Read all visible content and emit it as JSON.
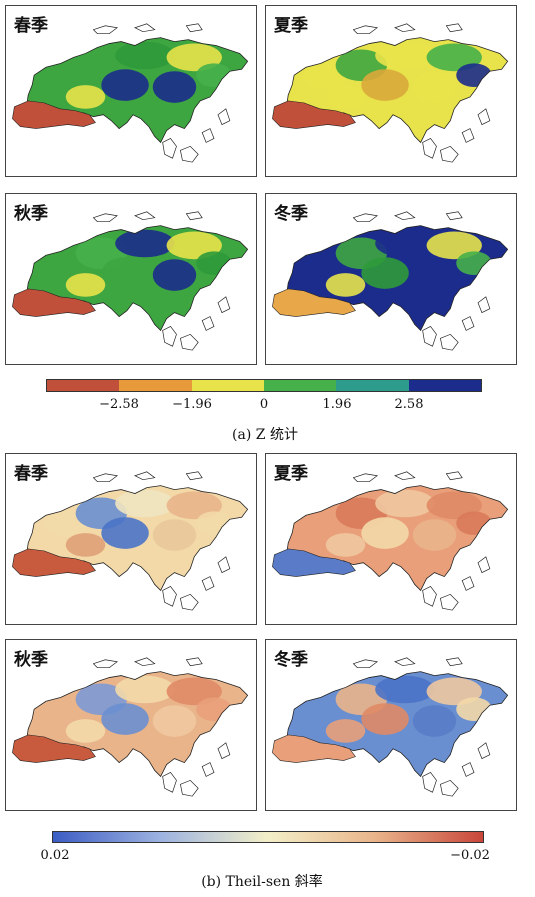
{
  "panel_a": {
    "panels": [
      {
        "label": "春季",
        "palette": [
          "#3ea641",
          "#3ea641",
          "#2f9a3a",
          "#e8e34a",
          "#1c2c8c",
          "#1c2c8c",
          "#46b04a",
          "#e8e34a"
        ],
        "south": "#c0503a"
      },
      {
        "label": "夏季",
        "palette": [
          "#e8e34a",
          "#3ea641",
          "#e8e34a",
          "#46b04a",
          "#d9a93a",
          "#e8e34a",
          "#1c2c8c",
          "#e8e34a"
        ],
        "south": "#c0503a"
      },
      {
        "label": "秋季",
        "palette": [
          "#3ea641",
          "#46b04a",
          "#1c2c8c",
          "#e8e34a",
          "#3ea641",
          "#1c2c8c",
          "#2f9a3a",
          "#e8e34a"
        ],
        "south": "#c0503a"
      },
      {
        "label": "冬季",
        "palette": [
          "#1c2c8c",
          "#3ea641",
          "#1c2c8c",
          "#e8e34a",
          "#2f9a3a",
          "#1c2c8c",
          "#46b04a",
          "#e8e34a"
        ],
        "south": "#e8a84a"
      }
    ],
    "legend_colors": [
      "#c0503a",
      "#e89a3a",
      "#e8e34a",
      "#46b04a",
      "#2e9c8c",
      "#1c2c8c"
    ],
    "ticks": [
      "−2.58",
      "−1.96",
      "0",
      "1.96",
      "2.58"
    ],
    "caption": "(a) Z 统计"
  },
  "panel_b": {
    "panels": [
      {
        "label": "春季",
        "palette": [
          "#f3d9a8",
          "#6a8fd0",
          "#f0e4c0",
          "#e9b48a",
          "#4a73c8",
          "#e9c89a",
          "#f3d9a8",
          "#e0a078"
        ],
        "south": "#c85a3e"
      },
      {
        "label": "夏季",
        "palette": [
          "#e9a07a",
          "#d97a5a",
          "#f0c8a0",
          "#e08a66",
          "#f3d9a8",
          "#e9b48a",
          "#d97a5a",
          "#f0c8a0"
        ],
        "south": "#5a7cc8"
      },
      {
        "label": "秋季",
        "palette": [
          "#e9b48a",
          "#7d9ad4",
          "#f3d9a8",
          "#e08a66",
          "#6a8fd0",
          "#f0c8a0",
          "#e9a07a",
          "#f3d9a8"
        ],
        "south": "#c85a3e"
      },
      {
        "label": "冬季",
        "palette": [
          "#6a8fd0",
          "#e9b48a",
          "#4a73c8",
          "#f0c8a0",
          "#e08a66",
          "#5a7cc8",
          "#f3d9a8",
          "#e9a07a"
        ],
        "south": "#e9a07a"
      }
    ],
    "legend_stops": [
      "#3b5cc4",
      "#9db3e0",
      "#f3efc8",
      "#e9b48a",
      "#c8463a"
    ],
    "ticks": [
      "0.02",
      "−0.02"
    ],
    "caption": "(b) Theil-sen 斜率"
  }
}
